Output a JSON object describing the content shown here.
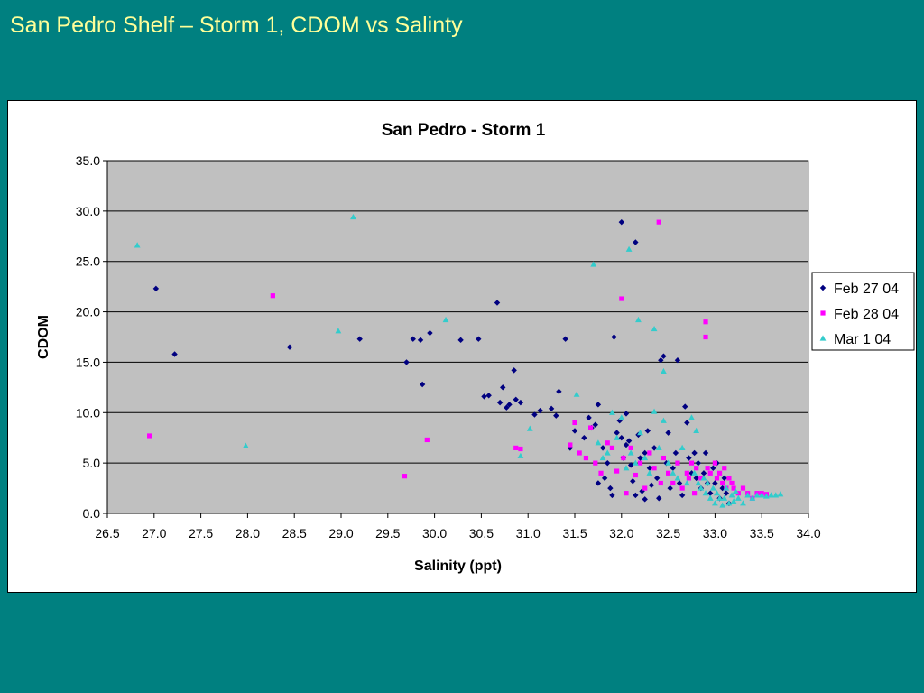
{
  "slide": {
    "title": "San Pedro Shelf – Storm 1, CDOM vs Salinty"
  },
  "chart_data": {
    "type": "scatter",
    "title": "San Pedro - Storm 1",
    "xlabel": "Salinity (ppt)",
    "ylabel": "CDOM",
    "xlim": [
      26.5,
      34.0
    ],
    "ylim": [
      0.0,
      35.0
    ],
    "x_ticks": [
      "26.5",
      "27.0",
      "27.5",
      "28.0",
      "28.5",
      "29.0",
      "29.5",
      "30.0",
      "30.5",
      "31.0",
      "31.5",
      "32.0",
      "32.5",
      "33.0",
      "33.5",
      "34.0"
    ],
    "y_ticks": [
      "0.0",
      "5.0",
      "10.0",
      "15.0",
      "20.0",
      "25.0",
      "30.0",
      "35.0"
    ],
    "grid": "horizontal",
    "plot_background": "#c0c0c0",
    "legend_position": "right",
    "series": [
      {
        "name": "Feb 27 04",
        "color": "#000080",
        "marker": "diamond",
        "points": [
          [
            27.02,
            22.3
          ],
          [
            27.22,
            15.8
          ],
          [
            28.45,
            16.5
          ],
          [
            29.2,
            17.3
          ],
          [
            29.7,
            15.0
          ],
          [
            29.77,
            17.3
          ],
          [
            29.85,
            17.2
          ],
          [
            29.87,
            12.8
          ],
          [
            29.95,
            17.9
          ],
          [
            30.28,
            17.2
          ],
          [
            30.47,
            17.3
          ],
          [
            30.53,
            11.6
          ],
          [
            30.58,
            11.7
          ],
          [
            30.67,
            20.9
          ],
          [
            30.7,
            11.0
          ],
          [
            30.73,
            12.5
          ],
          [
            30.77,
            10.5
          ],
          [
            30.8,
            10.8
          ],
          [
            30.85,
            14.2
          ],
          [
            30.87,
            11.3
          ],
          [
            30.92,
            11.0
          ],
          [
            31.07,
            9.8
          ],
          [
            31.13,
            10.2
          ],
          [
            31.25,
            10.4
          ],
          [
            31.3,
            9.7
          ],
          [
            31.33,
            12.1
          ],
          [
            31.4,
            17.3
          ],
          [
            31.45,
            6.5
          ],
          [
            31.5,
            8.2
          ],
          [
            31.6,
            7.5
          ],
          [
            31.65,
            9.5
          ],
          [
            31.68,
            8.5
          ],
          [
            31.72,
            8.8
          ],
          [
            31.75,
            10.8
          ],
          [
            31.75,
            3.0
          ],
          [
            31.8,
            6.5
          ],
          [
            31.82,
            3.5
          ],
          [
            31.85,
            5.0
          ],
          [
            31.88,
            2.5
          ],
          [
            31.9,
            1.8
          ],
          [
            31.92,
            17.5
          ],
          [
            31.95,
            8.0
          ],
          [
            31.98,
            9.2
          ],
          [
            32.0,
            28.9
          ],
          [
            32.0,
            7.5
          ],
          [
            32.02,
            5.5
          ],
          [
            32.05,
            9.9
          ],
          [
            32.05,
            6.8
          ],
          [
            32.08,
            7.2
          ],
          [
            32.1,
            4.8
          ],
          [
            32.12,
            3.2
          ],
          [
            32.15,
            26.9
          ],
          [
            32.15,
            1.8
          ],
          [
            32.18,
            7.8
          ],
          [
            32.2,
            5.5
          ],
          [
            32.22,
            2.2
          ],
          [
            32.25,
            6.0
          ],
          [
            32.25,
            1.4
          ],
          [
            32.28,
            8.2
          ],
          [
            32.3,
            4.5
          ],
          [
            32.32,
            2.8
          ],
          [
            32.35,
            6.5
          ],
          [
            32.38,
            3.5
          ],
          [
            32.4,
            1.5
          ],
          [
            32.42,
            15.2
          ],
          [
            32.45,
            15.6
          ],
          [
            32.48,
            5.0
          ],
          [
            32.5,
            8.0
          ],
          [
            32.52,
            2.5
          ],
          [
            32.55,
            4.5
          ],
          [
            32.58,
            6.0
          ],
          [
            32.6,
            15.2
          ],
          [
            32.62,
            3.0
          ],
          [
            32.65,
            1.8
          ],
          [
            32.68,
            10.6
          ],
          [
            32.7,
            9.0
          ],
          [
            32.72,
            5.5
          ],
          [
            32.75,
            4.0
          ],
          [
            32.78,
            6.0
          ],
          [
            32.8,
            3.5
          ],
          [
            32.82,
            5.0
          ],
          [
            32.85,
            2.5
          ],
          [
            32.88,
            4.0
          ],
          [
            32.9,
            6.0
          ],
          [
            32.92,
            3.0
          ],
          [
            32.95,
            2.0
          ],
          [
            32.98,
            4.5
          ],
          [
            33.0,
            3.0
          ],
          [
            33.02,
            5.0
          ],
          [
            33.05,
            1.5
          ],
          [
            33.08,
            2.5
          ],
          [
            33.1,
            3.5
          ],
          [
            33.12,
            2.0
          ],
          [
            33.15,
            1.0
          ]
        ]
      },
      {
        "name": "Feb 28 04",
        "color": "#ff00ff",
        "marker": "square",
        "points": [
          [
            26.95,
            7.7
          ],
          [
            28.27,
            21.6
          ],
          [
            29.68,
            3.7
          ],
          [
            29.92,
            7.3
          ],
          [
            30.87,
            6.5
          ],
          [
            30.92,
            6.4
          ],
          [
            31.45,
            6.8
          ],
          [
            31.5,
            9.0
          ],
          [
            31.55,
            6.0
          ],
          [
            31.62,
            5.5
          ],
          [
            31.67,
            8.5
          ],
          [
            31.72,
            5.0
          ],
          [
            31.78,
            4.0
          ],
          [
            31.85,
            7.0
          ],
          [
            31.9,
            6.5
          ],
          [
            31.95,
            4.2
          ],
          [
            32.0,
            21.3
          ],
          [
            32.02,
            5.5
          ],
          [
            32.05,
            2.0
          ],
          [
            32.1,
            6.5
          ],
          [
            32.15,
            3.8
          ],
          [
            32.2,
            5.0
          ],
          [
            32.25,
            2.5
          ],
          [
            32.3,
            6.0
          ],
          [
            32.35,
            4.5
          ],
          [
            32.4,
            28.9
          ],
          [
            32.42,
            3.0
          ],
          [
            32.45,
            5.5
          ],
          [
            32.5,
            4.0
          ],
          [
            32.55,
            3.0
          ],
          [
            32.6,
            5.0
          ],
          [
            32.65,
            2.5
          ],
          [
            32.7,
            4.0
          ],
          [
            32.72,
            3.5
          ],
          [
            32.75,
            5.0
          ],
          [
            32.78,
            2.0
          ],
          [
            32.8,
            4.5
          ],
          [
            32.85,
            3.5
          ],
          [
            32.9,
            19.0
          ],
          [
            32.9,
            17.5
          ],
          [
            32.92,
            4.5
          ],
          [
            32.95,
            4.0
          ],
          [
            33.0,
            5.0
          ],
          [
            33.02,
            3.5
          ],
          [
            33.05,
            4.0
          ],
          [
            33.08,
            3.0
          ],
          [
            33.1,
            4.5
          ],
          [
            33.12,
            2.5
          ],
          [
            33.15,
            3.5
          ],
          [
            33.18,
            3.0
          ],
          [
            33.2,
            2.5
          ],
          [
            33.25,
            2.0
          ],
          [
            33.3,
            2.5
          ],
          [
            33.35,
            2.0
          ],
          [
            33.4,
            1.5
          ],
          [
            33.45,
            2.0
          ],
          [
            33.5,
            2.0
          ],
          [
            33.55,
            1.9
          ]
        ]
      },
      {
        "name": "Mar 1 04",
        "color": "#33cccc",
        "marker": "triangle",
        "points": [
          [
            26.82,
            26.6
          ],
          [
            27.98,
            6.7
          ],
          [
            28.97,
            18.1
          ],
          [
            29.13,
            29.4
          ],
          [
            30.12,
            19.2
          ],
          [
            30.92,
            5.7
          ],
          [
            31.02,
            8.4
          ],
          [
            31.52,
            11.8
          ],
          [
            31.7,
            24.7
          ],
          [
            31.75,
            7.0
          ],
          [
            31.8,
            5.5
          ],
          [
            31.85,
            6.0
          ],
          [
            31.9,
            10.0
          ],
          [
            31.95,
            7.5
          ],
          [
            32.0,
            9.5
          ],
          [
            32.05,
            4.5
          ],
          [
            32.08,
            26.2
          ],
          [
            32.1,
            6.0
          ],
          [
            32.15,
            5.0
          ],
          [
            32.18,
            19.2
          ],
          [
            32.2,
            8.0
          ],
          [
            32.25,
            5.5
          ],
          [
            32.3,
            4.0
          ],
          [
            32.35,
            18.3
          ],
          [
            32.35,
            10.1
          ],
          [
            32.4,
            6.5
          ],
          [
            32.45,
            14.1
          ],
          [
            32.45,
            9.2
          ],
          [
            32.5,
            5.0
          ],
          [
            32.55,
            4.0
          ],
          [
            32.6,
            3.5
          ],
          [
            32.65,
            6.5
          ],
          [
            32.7,
            3.0
          ],
          [
            32.75,
            9.5
          ],
          [
            32.78,
            4.0
          ],
          [
            32.8,
            8.2
          ],
          [
            32.82,
            3.0
          ],
          [
            32.85,
            2.5
          ],
          [
            32.88,
            3.5
          ],
          [
            32.9,
            2.0
          ],
          [
            32.92,
            3.0
          ],
          [
            32.95,
            1.5
          ],
          [
            32.98,
            2.5
          ],
          [
            33.0,
            1.0
          ],
          [
            33.02,
            2.0
          ],
          [
            33.05,
            1.5
          ],
          [
            33.08,
            0.8
          ],
          [
            33.1,
            1.5
          ],
          [
            33.12,
            2.5
          ],
          [
            33.15,
            1.0
          ],
          [
            33.18,
            1.8
          ],
          [
            33.2,
            1.2
          ],
          [
            33.22,
            2.2
          ],
          [
            33.25,
            1.5
          ],
          [
            33.3,
            1.0
          ],
          [
            33.35,
            1.8
          ],
          [
            33.4,
            1.5
          ],
          [
            33.45,
            1.8
          ],
          [
            33.5,
            1.8
          ],
          [
            33.55,
            1.7
          ],
          [
            33.6,
            1.8
          ],
          [
            33.65,
            1.8
          ],
          [
            33.7,
            1.9
          ]
        ]
      }
    ]
  }
}
